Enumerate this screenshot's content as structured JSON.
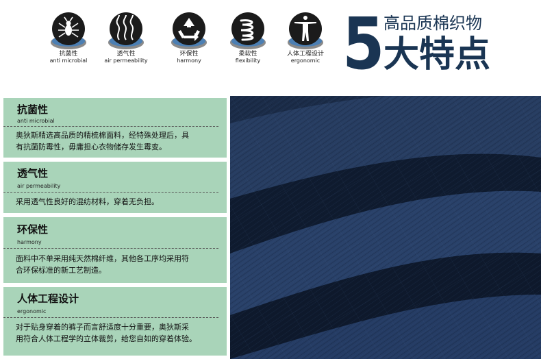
{
  "icons": [
    {
      "icon": "bug-icon",
      "cn": "抗菌性",
      "en": "anti microbial"
    },
    {
      "icon": "air-flow-icon",
      "cn": "透气性",
      "en": "air permeability"
    },
    {
      "icon": "recycle-icon",
      "cn": "环保性",
      "en": "harmony"
    },
    {
      "icon": "spring-icon",
      "cn": "柔软性",
      "en": "flexibility"
    },
    {
      "icon": "human-figure-icon",
      "cn": "人体工程设计",
      "en": "ergonomic"
    }
  ],
  "heading": {
    "number": "5",
    "line1": "高品质棉织物",
    "line2": "大特点"
  },
  "features": [
    {
      "title": "抗菌性",
      "sub": "anti microbial",
      "lines": [
        "奥狄斯精选高品质的精梳棉面料，经特殊处理后，具",
        "有抗菌防霉性，毋庸担心衣物储存发生霉变。"
      ]
    },
    {
      "title": "透气性",
      "sub": "air permeability",
      "lines": [
        "采用透气性良好的混纺材料，穿着无负担。"
      ]
    },
    {
      "title": "环保性",
      "sub": "harmony",
      "lines": [
        "面料中不单采用纯天然棉纤维，其他各工序均采用符",
        "合环保标准的新工艺制造。"
      ]
    },
    {
      "title": "人体工程设计",
      "sub": "ergonomic",
      "lines": [
        "对于贴身穿着的裤子而言舒适度十分重要，奥狄斯采",
        "用符合人体工程学的立体裁剪，给您自如的穿着体验。"
      ]
    }
  ],
  "colors": {
    "card_bg": "#a9d4b9",
    "navy": "#1a3553",
    "fabric": "#1b2c48"
  }
}
